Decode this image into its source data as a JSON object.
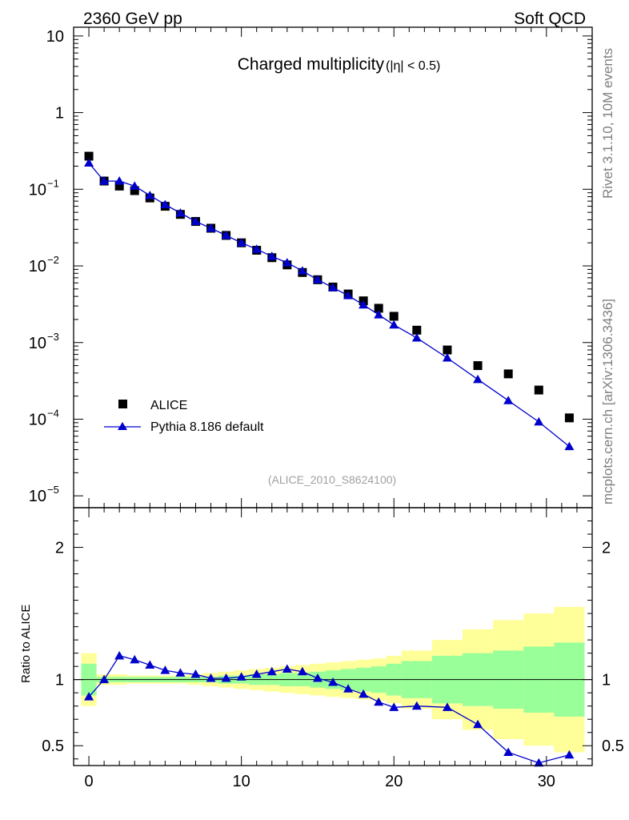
{
  "header": {
    "energy_label": "2360 GeV pp",
    "process_label": "Soft QCD"
  },
  "side_labels": {
    "rivet": "Rivet 3.1.10,  10M events",
    "mcplots": "mcplots.cern.ch [arXiv:1306.3436]"
  },
  "chart_data": [
    {
      "type": "scatter",
      "panel": "main",
      "title": "Charged multiplicity",
      "title_suffix": "(|η| < 0.5)",
      "yscale": "log",
      "xlim": [
        -1,
        33
      ],
      "ylim": [
        7e-06,
        13
      ],
      "y_tick_labels": [
        {
          "value": 10,
          "label": "10"
        },
        {
          "value": 1,
          "label": "1"
        },
        {
          "value": 0.1,
          "base": "10",
          "exp": "−1"
        },
        {
          "value": 0.01,
          "base": "10",
          "exp": "−2"
        },
        {
          "value": 0.001,
          "base": "10",
          "exp": "−3"
        },
        {
          "value": 0.0001,
          "base": "10",
          "exp": "−4"
        },
        {
          "value": 1e-05,
          "base": "10",
          "exp": "−5"
        }
      ],
      "legend_position": "bottom-left",
      "watermark": "(ALICE_2010_S8624100)",
      "series": [
        {
          "name": "ALICE",
          "style": "black-squares",
          "x": [
            0,
            1,
            2,
            3,
            4,
            5,
            6,
            7,
            8,
            9,
            10,
            11,
            12,
            13,
            14,
            15,
            16,
            17,
            18,
            19,
            20,
            21.5,
            23.5,
            25.5,
            27.5,
            29.5,
            31.5
          ],
          "y": [
            0.27,
            0.128,
            0.11,
            0.096,
            0.077,
            0.06,
            0.047,
            0.038,
            0.031,
            0.025,
            0.02,
            0.016,
            0.0128,
            0.0103,
            0.0082,
            0.0066,
            0.0053,
            0.0043,
            0.0035,
            0.0028,
            0.0022,
            0.00145,
            0.0008,
            0.0005,
            0.00039,
            0.00024,
            0.000104
          ]
        },
        {
          "name": "Pythia 8.186 default",
          "style": "blue-line-triangles",
          "color": "#0000cc",
          "x": [
            0,
            1,
            2,
            3,
            4,
            5,
            6,
            7,
            8,
            9,
            10,
            11,
            12,
            13,
            14,
            15,
            16,
            17,
            18,
            19,
            20,
            21.5,
            23.5,
            25.5,
            27.5,
            29.5,
            31.5
          ],
          "y": [
            0.22,
            0.128,
            0.128,
            0.11,
            0.083,
            0.063,
            0.049,
            0.038,
            0.031,
            0.025,
            0.02,
            0.0165,
            0.0133,
            0.011,
            0.0086,
            0.0066,
            0.0052,
            0.0041,
            0.0031,
            0.0023,
            0.0017,
            0.00115,
            0.00063,
            0.00033,
            0.000175,
            9.2e-05,
            4.4e-05
          ]
        }
      ]
    },
    {
      "type": "line",
      "panel": "ratio",
      "ylabel": "Ratio to ALICE",
      "xlim": [
        -1,
        33
      ],
      "ylim": [
        0.35,
        2.3
      ],
      "x_tick_labels": [
        "0",
        "10",
        "20",
        "30"
      ],
      "y_tick_labels": [
        "2",
        "1",
        "0.5"
      ],
      "reference_line": 1,
      "uncertainty_bins": {
        "bins": [
          [
            -0.5,
            0.5
          ],
          [
            0.5,
            1.5
          ],
          [
            1.5,
            2.5
          ],
          [
            2.5,
            3.5
          ],
          [
            3.5,
            4.5
          ],
          [
            4.5,
            5.5
          ],
          [
            5.5,
            6.5
          ],
          [
            6.5,
            7.5
          ],
          [
            7.5,
            8.5
          ],
          [
            8.5,
            9.5
          ],
          [
            9.5,
            10.5
          ],
          [
            10.5,
            11.5
          ],
          [
            11.5,
            12.5
          ],
          [
            12.5,
            13.5
          ],
          [
            13.5,
            14.5
          ],
          [
            14.5,
            15.5
          ],
          [
            15.5,
            16.5
          ],
          [
            16.5,
            17.5
          ],
          [
            17.5,
            18.5
          ],
          [
            18.5,
            19.5
          ],
          [
            19.5,
            20.5
          ],
          [
            20.5,
            22.5
          ],
          [
            22.5,
            24.5
          ],
          [
            24.5,
            26.5
          ],
          [
            26.5,
            28.5
          ],
          [
            28.5,
            30.5
          ],
          [
            30.5,
            32.5
          ]
        ],
        "inner": [
          0.12,
          0.02,
          0.02,
          0.02,
          0.02,
          0.02,
          0.02,
          0.02,
          0.02,
          0.03,
          0.03,
          0.04,
          0.04,
          0.05,
          0.05,
          0.06,
          0.07,
          0.08,
          0.09,
          0.1,
          0.12,
          0.14,
          0.18,
          0.2,
          0.22,
          0.25,
          0.28
        ],
        "outer": [
          0.2,
          0.04,
          0.04,
          0.03,
          0.03,
          0.03,
          0.03,
          0.04,
          0.05,
          0.06,
          0.07,
          0.08,
          0.09,
          0.1,
          0.11,
          0.12,
          0.13,
          0.14,
          0.15,
          0.16,
          0.18,
          0.22,
          0.3,
          0.38,
          0.45,
          0.5,
          0.55
        ],
        "inner_color": "#99ff99",
        "outer_color": "#ffff99"
      },
      "series": [
        {
          "name": "Pythia 8.186 default / ALICE",
          "color": "#0000cc",
          "x": [
            0,
            1,
            2,
            3,
            4,
            5,
            6,
            7,
            8,
            9,
            10,
            11,
            12,
            13,
            14,
            15,
            16,
            17,
            18,
            19,
            20,
            21.5,
            23.5,
            25.5,
            27.5,
            29.5,
            31.5
          ],
          "y": [
            0.87,
            1.0,
            1.18,
            1.15,
            1.11,
            1.07,
            1.05,
            1.04,
            1.01,
            1.01,
            1.02,
            1.04,
            1.06,
            1.08,
            1.06,
            1.01,
            0.98,
            0.93,
            0.89,
            0.83,
            0.79,
            0.8,
            0.79,
            0.66,
            0.45,
            0.37,
            0.43
          ]
        }
      ]
    }
  ]
}
